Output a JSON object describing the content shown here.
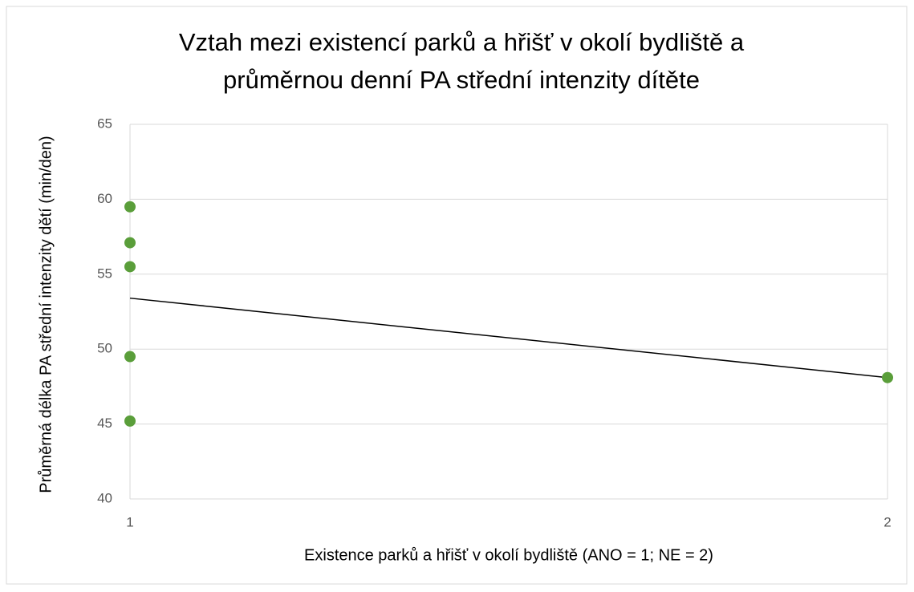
{
  "chart_data": {
    "type": "scatter",
    "title": [
      "Vztah mezi existencí parků a hřišť v okolí bydliště a",
      "průměrnou denní PA střední intenzity dítěte"
    ],
    "xlabel": "Existence parků a hřišť v okolí bydliště (ANO = 1; NE = 2)",
    "ylabel": "Průměrná délka PA střední intenzity dětí (min/den)",
    "series": [
      {
        "color": "#5a9e3a",
        "x": [
          1,
          1,
          1,
          1,
          1,
          2
        ],
        "values": [
          59.5,
          57.1,
          55.5,
          49.5,
          45.2,
          48.1
        ]
      }
    ],
    "trendline": {
      "color": "#000000",
      "x": [
        1,
        2
      ],
      "values": [
        53.4,
        48.1
      ]
    },
    "xlim": [
      1,
      2
    ],
    "xticks": [
      1,
      2
    ],
    "ylim": [
      40,
      65
    ],
    "yticks": [
      40,
      45,
      50,
      55,
      60,
      65
    ],
    "grid": true
  }
}
